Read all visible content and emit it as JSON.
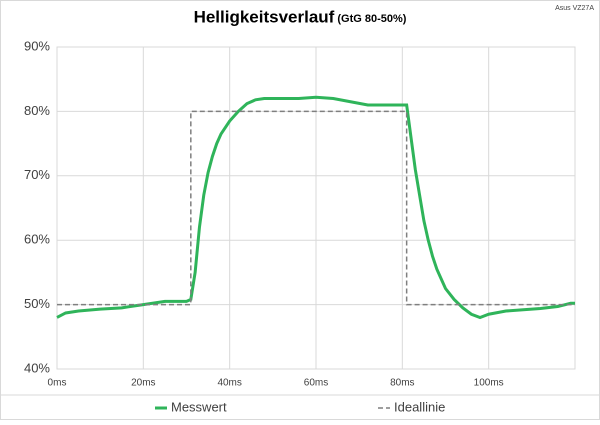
{
  "chart_data": {
    "type": "line",
    "title": "Helligkeitsverlauf",
    "subtitle": "(GtG 80-50%)",
    "annotation": "Asus VZ27A",
    "xlim": [
      0,
      120
    ],
    "xticks": [
      {
        "value": 0,
        "label": "0ms"
      },
      {
        "value": 20,
        "label": "20ms"
      },
      {
        "value": 40,
        "label": "40ms"
      },
      {
        "value": 60,
        "label": "60ms"
      },
      {
        "value": 80,
        "label": "80ms"
      },
      {
        "value": 100,
        "label": "100ms"
      }
    ],
    "ylim": [
      40,
      90
    ],
    "yticks": [
      {
        "value": 40,
        "label": "40%"
      },
      {
        "value": 50,
        "label": "50%"
      },
      {
        "value": 60,
        "label": "60%"
      },
      {
        "value": 70,
        "label": "70%"
      },
      {
        "value": 80,
        "label": "80%"
      },
      {
        "value": 90,
        "label": "90%"
      }
    ],
    "grid": true,
    "legend": "bottom",
    "series": [
      {
        "name": "Messwert",
        "color": "#2fb45a",
        "dash": false,
        "x": [
          0,
          2,
          5,
          10,
          15,
          20,
          25,
          30,
          31,
          32,
          33,
          34,
          35,
          36,
          37,
          38,
          40,
          42,
          44,
          46,
          48,
          52,
          56,
          60,
          64,
          68,
          72,
          76,
          80,
          81,
          82,
          83,
          84,
          85,
          86,
          87,
          88,
          89,
          90,
          92,
          94,
          96,
          98,
          100,
          104,
          108,
          112,
          116,
          119,
          120
        ],
        "values": [
          48,
          48.7,
          49,
          49.3,
          49.5,
          50,
          50.5,
          50.5,
          50.8,
          55,
          62,
          67,
          70.5,
          73,
          75,
          76.5,
          78.5,
          80,
          81.2,
          81.8,
          82,
          82,
          82,
          82.2,
          82,
          81.5,
          81,
          81,
          81,
          81,
          76,
          71,
          67,
          63,
          60,
          57.5,
          55.5,
          54,
          52.5,
          50.8,
          49.5,
          48.5,
          48,
          48.5,
          49,
          49.2,
          49.4,
          49.7,
          50.2,
          50.2
        ]
      },
      {
        "name": "Ideallinie",
        "color": "#7f7f7f",
        "dash": true,
        "x": [
          0,
          31,
          31,
          81,
          81,
          120
        ],
        "values": [
          50,
          50,
          80,
          80,
          50,
          50
        ]
      }
    ]
  }
}
